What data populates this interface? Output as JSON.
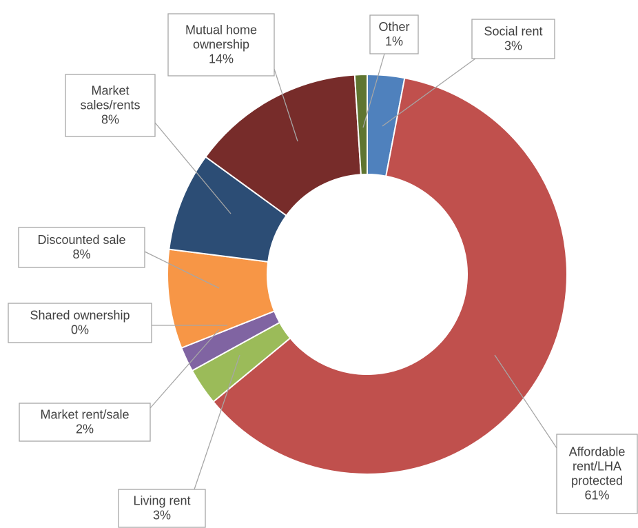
{
  "chart_data": {
    "type": "donut",
    "categories": [
      "Social rent",
      "Affordable rent/LHA protected",
      "Living rent",
      "Market rent/sale",
      "Shared ownership",
      "Discounted sale",
      "Market sales/rents",
      "Mutual home ownership",
      "Other"
    ],
    "values": [
      3,
      61,
      3,
      2,
      0,
      8,
      8,
      14,
      1
    ],
    "value_labels": [
      "3%",
      "61%",
      "3%",
      "2%",
      "0%",
      "8%",
      "8%",
      "14%",
      "1%"
    ],
    "colors": [
      "#4f81bd",
      "#c0504d",
      "#9bbb59",
      "#8064a2",
      "#4bacc6",
      "#f79646",
      "#2c4d75",
      "#772c2a",
      "#5f7530"
    ]
  }
}
